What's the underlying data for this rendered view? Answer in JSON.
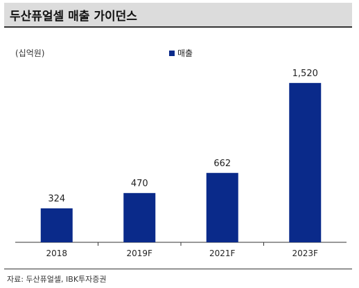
{
  "header": {
    "title": "두산퓨얼셀 매출 가이던스"
  },
  "chart_data": {
    "type": "bar",
    "categories": [
      "2018",
      "2019F",
      "2021F",
      "2023F"
    ],
    "series": [
      {
        "name": "매출",
        "values": [
          324,
          470,
          662,
          1520
        ],
        "labels": [
          "324",
          "470",
          "662",
          "1,520"
        ]
      }
    ],
    "unit_label": "(십억원)",
    "ylim": [
      0,
      1750
    ],
    "grid": false,
    "legend_placement": "top-center",
    "bar_color": "#0a2a8a"
  },
  "footer": {
    "source": "자료: 두산퓨얼셀, IBK투자증권"
  }
}
